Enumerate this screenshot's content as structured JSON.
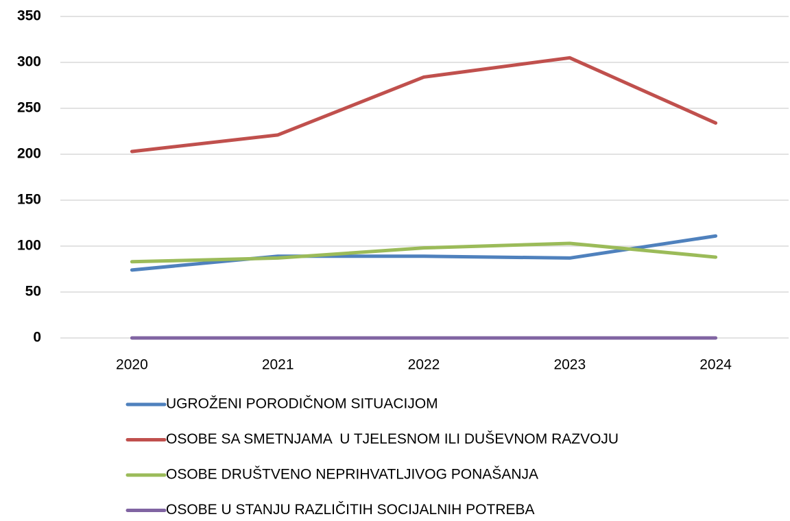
{
  "chart_data": {
    "type": "line",
    "categories": [
      "2020",
      "2021",
      "2022",
      "2023",
      "2024"
    ],
    "series": [
      {
        "name": "UGROŽENI PORODIČNOM SITUACIJOM",
        "color": "#4f81bd",
        "values": [
          74,
          89,
          89,
          87,
          111
        ]
      },
      {
        "name": "OSOBE SA SMETNJAMA  U TJELESNOM ILI DUŠEVNOM RAZVOJU",
        "color": "#c0504d",
        "values": [
          203,
          221,
          284,
          305,
          234
        ]
      },
      {
        "name": "OSOBE DRUŠTVENO NEPRIHVATLJIVOG PONAŠANJA",
        "color": "#9bbb59",
        "values": [
          83,
          87,
          98,
          103,
          88
        ]
      },
      {
        "name": "OSOBE U STANJU RAZLIČITIH SOCIJALNIH POTREBA",
        "color": "#8064a2",
        "values": [
          0,
          0,
          0,
          0,
          0
        ]
      }
    ],
    "ylim": [
      0,
      350
    ],
    "yticks": [
      0,
      50,
      100,
      150,
      200,
      250,
      300,
      350
    ],
    "grid": true
  }
}
